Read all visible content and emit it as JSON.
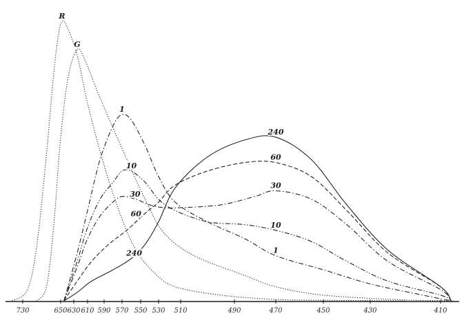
{
  "chart_data": {
    "type": "line",
    "title": "",
    "xlabel": "",
    "ylabel": "",
    "x_direction": "reversed",
    "x_tick_labels": [
      "730",
      "650",
      "630",
      "610",
      "590",
      "570",
      "550",
      "530",
      "510",
      "490",
      "470",
      "450",
      "430",
      "410"
    ],
    "xlim": [
      740,
      400
    ],
    "ylim": [
      0,
      100
    ],
    "grid": false,
    "legend": "none",
    "series": [
      {
        "name": "R",
        "style": "dotted",
        "points": [
          [
            738,
            0
          ],
          [
            720,
            4
          ],
          [
            700,
            20
          ],
          [
            680,
            52
          ],
          [
            665,
            80
          ],
          [
            655,
            94
          ],
          [
            648,
            99
          ],
          [
            640,
            97
          ],
          [
            625,
            87
          ],
          [
            610,
            70
          ],
          [
            590,
            48
          ],
          [
            570,
            29
          ],
          [
            555,
            18
          ],
          [
            535,
            10
          ],
          [
            515,
            5
          ],
          [
            495,
            2
          ],
          [
            470,
            0.5
          ],
          [
            450,
            0.2
          ],
          [
            420,
            0
          ]
        ]
      },
      {
        "name": "G",
        "style": "dotted",
        "points": [
          [
            700,
            0
          ],
          [
            680,
            5
          ],
          [
            665,
            26
          ],
          [
            650,
            58
          ],
          [
            638,
            80
          ],
          [
            625,
            89
          ],
          [
            615,
            86
          ],
          [
            595,
            72
          ],
          [
            570,
            54
          ],
          [
            545,
            36
          ],
          [
            525,
            24
          ],
          [
            505,
            16
          ],
          [
            485,
            9
          ],
          [
            470,
            5
          ],
          [
            450,
            2
          ],
          [
            420,
            0.3
          ],
          [
            400,
            0
          ]
        ]
      },
      {
        "name": "1",
        "style": "dash-dot",
        "points": [
          [
            645,
            0
          ],
          [
            625,
            17
          ],
          [
            610,
            32
          ],
          [
            595,
            50
          ],
          [
            580,
            62
          ],
          [
            570,
            66
          ],
          [
            560,
            64
          ],
          [
            545,
            55
          ],
          [
            530,
            44
          ],
          [
            515,
            35
          ],
          [
            500,
            28
          ],
          [
            485,
            22
          ],
          [
            470,
            16
          ],
          [
            450,
            11
          ],
          [
            430,
            6
          ],
          [
            415,
            2
          ],
          [
            402,
            0
          ]
        ]
      },
      {
        "name": "10",
        "style": "dash-dot-dot",
        "points": [
          [
            645,
            0
          ],
          [
            625,
            14
          ],
          [
            610,
            26
          ],
          [
            595,
            36
          ],
          [
            580,
            42
          ],
          [
            570,
            46
          ],
          [
            560,
            46
          ],
          [
            545,
            42
          ],
          [
            530,
            36
          ],
          [
            515,
            32
          ],
          [
            500,
            28
          ],
          [
            485,
            27
          ],
          [
            470,
            25
          ],
          [
            455,
            21
          ],
          [
            440,
            14
          ],
          [
            425,
            7
          ],
          [
            410,
            2
          ],
          [
            402,
            0
          ]
        ]
      },
      {
        "name": "30",
        "style": "dash-dot",
        "points": [
          [
            645,
            0
          ],
          [
            625,
            12
          ],
          [
            610,
            22
          ],
          [
            595,
            30
          ],
          [
            580,
            35
          ],
          [
            570,
            37
          ],
          [
            555,
            36
          ],
          [
            540,
            34
          ],
          [
            525,
            33
          ],
          [
            510,
            33
          ],
          [
            495,
            34
          ],
          [
            480,
            37
          ],
          [
            470,
            39
          ],
          [
            455,
            36
          ],
          [
            440,
            27
          ],
          [
            425,
            14
          ],
          [
            410,
            4
          ],
          [
            402,
            0
          ]
        ]
      },
      {
        "name": "60",
        "style": "dashed",
        "points": [
          [
            645,
            0
          ],
          [
            625,
            7
          ],
          [
            605,
            14
          ],
          [
            585,
            20
          ],
          [
            565,
            25
          ],
          [
            545,
            31
          ],
          [
            530,
            35
          ],
          [
            515,
            41
          ],
          [
            500,
            46
          ],
          [
            485,
            49
          ],
          [
            470,
            49
          ],
          [
            455,
            44
          ],
          [
            440,
            32
          ],
          [
            425,
            17
          ],
          [
            410,
            5
          ],
          [
            402,
            0
          ]
        ]
      },
      {
        "name": "240",
        "style": "solid",
        "points": [
          [
            645,
            0
          ],
          [
            625,
            3
          ],
          [
            605,
            7
          ],
          [
            580,
            11
          ],
          [
            560,
            15
          ],
          [
            545,
            20
          ],
          [
            530,
            28
          ],
          [
            515,
            40
          ],
          [
            500,
            51
          ],
          [
            485,
            57
          ],
          [
            470,
            58
          ],
          [
            455,
            50
          ],
          [
            440,
            34
          ],
          [
            425,
            18
          ],
          [
            410,
            5
          ],
          [
            402,
            0
          ]
        ]
      }
    ],
    "curve_labels": [
      {
        "text": "R",
        "series": "R",
        "at": [
          648,
          99
        ]
      },
      {
        "text": "G",
        "series": "G",
        "at": [
          625,
          89
        ]
      },
      {
        "text": "1",
        "series": "1",
        "at": [
          570,
          66
        ]
      },
      {
        "text": "10",
        "series": "10",
        "at": [
          560,
          46
        ]
      },
      {
        "text": "30",
        "series": "30",
        "at": [
          556,
          36
        ]
      },
      {
        "text": "60",
        "series": "60",
        "at": [
          555,
          29
        ]
      },
      {
        "text": "240",
        "series": "240",
        "at": [
          557,
          15
        ]
      },
      {
        "text": "240",
        "series": "240",
        "at": [
          470,
          58
        ]
      },
      {
        "text": "60",
        "series": "60",
        "at": [
          470,
          49
        ]
      },
      {
        "text": "30",
        "series": "30",
        "at": [
          470,
          39
        ]
      },
      {
        "text": "10",
        "series": "10",
        "at": [
          470,
          25
        ]
      },
      {
        "text": "1",
        "series": "1",
        "at": [
          470,
          16
        ]
      }
    ]
  }
}
